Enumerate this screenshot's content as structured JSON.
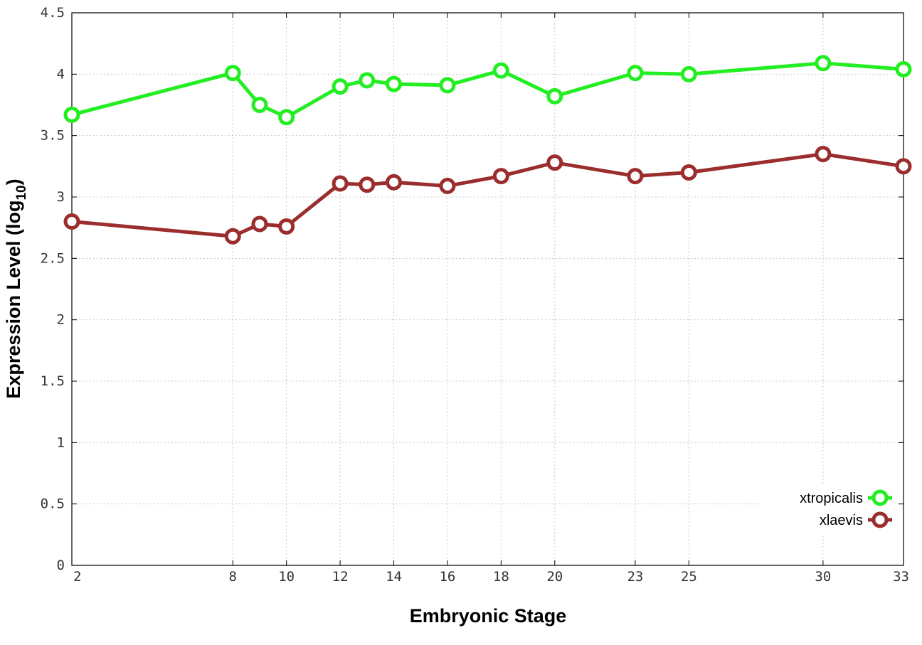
{
  "chart_data": {
    "type": "line",
    "xlabel": "Embryonic Stage",
    "ylabel": "Expression Level (log",
    "ylabel_subscript": "10",
    "ylabel_close": ")",
    "x_ticks": [
      2,
      8,
      10,
      12,
      14,
      16,
      18,
      20,
      23,
      25,
      30,
      33
    ],
    "y_ticks": [
      "0",
      "0.5",
      "1",
      "1.5",
      "2",
      "2.5",
      "3",
      "3.5",
      "4",
      "4.5"
    ],
    "xlim": [
      2,
      33
    ],
    "ylim": [
      0,
      4.5
    ],
    "grid": true,
    "legend_position": "bottom-right",
    "x": [
      2,
      8,
      9,
      10,
      12,
      13,
      14,
      16,
      18,
      20,
      23,
      25,
      30,
      33
    ],
    "series": [
      {
        "name": "xtropicalis",
        "color": "#22ee22",
        "values": [
          3.67,
          4.01,
          3.75,
          3.65,
          3.9,
          3.95,
          3.92,
          3.91,
          4.03,
          3.82,
          4.01,
          4.0,
          4.09,
          4.04
        ]
      },
      {
        "name": "xlaevis",
        "color": "#9b2d2d",
        "values": [
          2.8,
          2.68,
          2.78,
          2.76,
          3.11,
          3.1,
          3.12,
          3.09,
          3.17,
          3.28,
          3.17,
          3.2,
          3.35,
          3.25
        ]
      }
    ]
  }
}
